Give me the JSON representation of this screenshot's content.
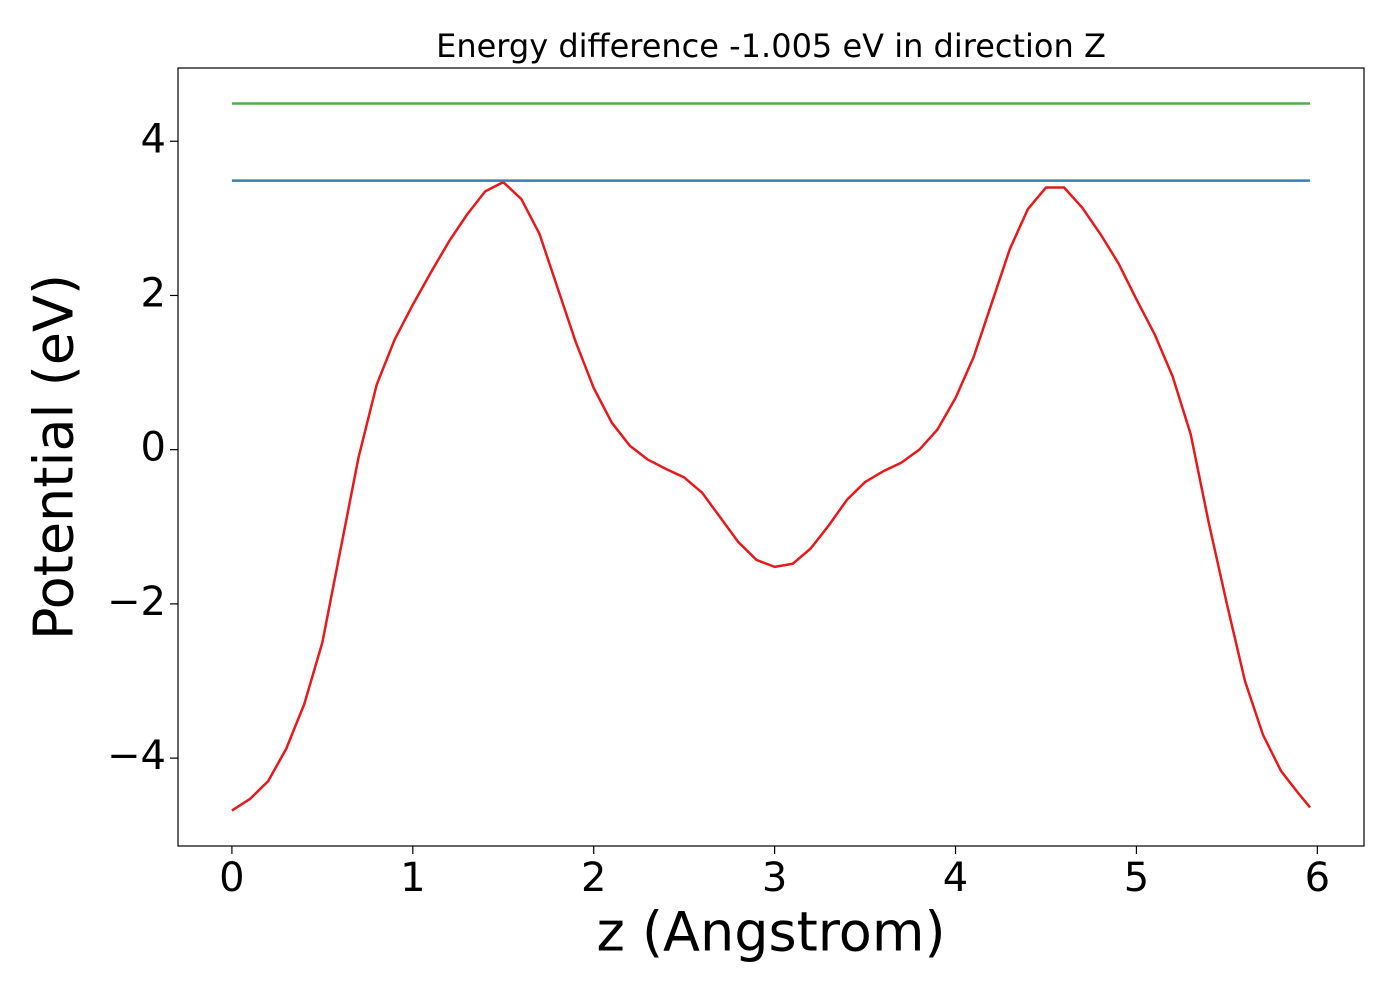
{
  "chart_data": {
    "type": "line",
    "title": "Energy difference -1.005 eV in direction Z",
    "xlabel": "z (Angstrom)",
    "ylabel": "Potential (eV)",
    "xlim": [
      -0.298,
      6.258
    ],
    "ylim": [
      -5.14,
      4.95
    ],
    "xticks": [
      0,
      1,
      2,
      3,
      4,
      5,
      6
    ],
    "yticks": [
      {
        "value": -4,
        "label": "−4"
      },
      {
        "value": -2,
        "label": "−2"
      },
      0,
      2,
      4
    ],
    "grid": false,
    "series": [
      {
        "color": "#e41a1c",
        "x": [
          0,
          0.1,
          0.2,
          0.3,
          0.4,
          0.5,
          0.6,
          0.7,
          0.8,
          0.9,
          1.0,
          1.1,
          1.2,
          1.3,
          1.4,
          1.5,
          1.6,
          1.7,
          1.8,
          1.9,
          2.0,
          2.1,
          2.2,
          2.3,
          2.4,
          2.5,
          2.6,
          2.7,
          2.8,
          2.9,
          3.0,
          3.1,
          3.2,
          3.3,
          3.4,
          3.5,
          3.6,
          3.7,
          3.8,
          3.9,
          4.0,
          4.1,
          4.2,
          4.3,
          4.4,
          4.5,
          4.6,
          4.7,
          4.8,
          4.9,
          5.0,
          5.1,
          5.2,
          5.3,
          5.4,
          5.5,
          5.6,
          5.7,
          5.8,
          5.9,
          5.96
        ],
        "values": [
          -4.68,
          -4.53,
          -4.3,
          -3.88,
          -3.3,
          -2.5,
          -1.3,
          -0.1,
          0.84,
          1.43,
          1.88,
          2.3,
          2.7,
          3.05,
          3.35,
          3.47,
          3.25,
          2.8,
          2.1,
          1.4,
          0.8,
          0.35,
          0.05,
          -0.13,
          -0.25,
          -0.36,
          -0.56,
          -0.88,
          -1.2,
          -1.43,
          -1.52,
          -1.48,
          -1.28,
          -0.98,
          -0.65,
          -0.42,
          -0.28,
          -0.17,
          0.0,
          0.26,
          0.67,
          1.2,
          1.9,
          2.6,
          3.12,
          3.4,
          3.4,
          3.14,
          2.8,
          2.42,
          1.95,
          1.5,
          0.95,
          0.2,
          -0.95,
          -2.0,
          -3.0,
          -3.7,
          -4.17,
          -4.47,
          -4.64
        ]
      },
      {
        "color": "#377eb8",
        "x": [
          0,
          5.96
        ],
        "values": [
          3.49,
          3.49
        ]
      },
      {
        "color": "#4daf4a",
        "x": [
          0,
          5.96
        ],
        "values": [
          4.49,
          4.49
        ]
      }
    ]
  }
}
